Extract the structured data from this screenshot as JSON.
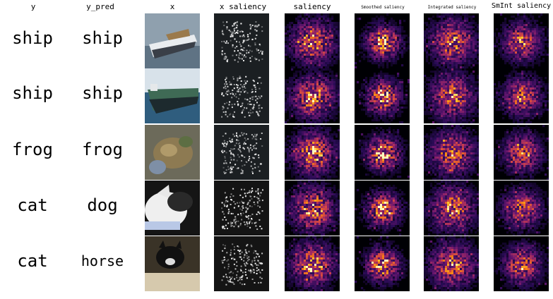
{
  "headers": {
    "y": "y",
    "y_pred": "y_pred",
    "x": "x",
    "x_saliency": "x saliency",
    "saliency": "saliency",
    "smoothed": "Smoothed saliency",
    "integrated": "Integrated saliency",
    "smint": "SmInt saliency"
  },
  "rows": [
    {
      "y": "ship",
      "y_pred": "ship",
      "image": "ship-image"
    },
    {
      "y": "ship",
      "y_pred": "ship",
      "image": "ship-image"
    },
    {
      "y": "frog",
      "y_pred": "frog",
      "image": "frog-image"
    },
    {
      "y": "cat",
      "y_pred": "dog",
      "image": "cat-image"
    },
    {
      "y": "cat",
      "y_pred": "horse",
      "image": "cat-image"
    }
  ],
  "colors": {
    "background": "#ffffff",
    "heatmap_low": "#000004",
    "heatmap_mid": "#b63679",
    "heatmap_high": "#fcfdbf"
  }
}
